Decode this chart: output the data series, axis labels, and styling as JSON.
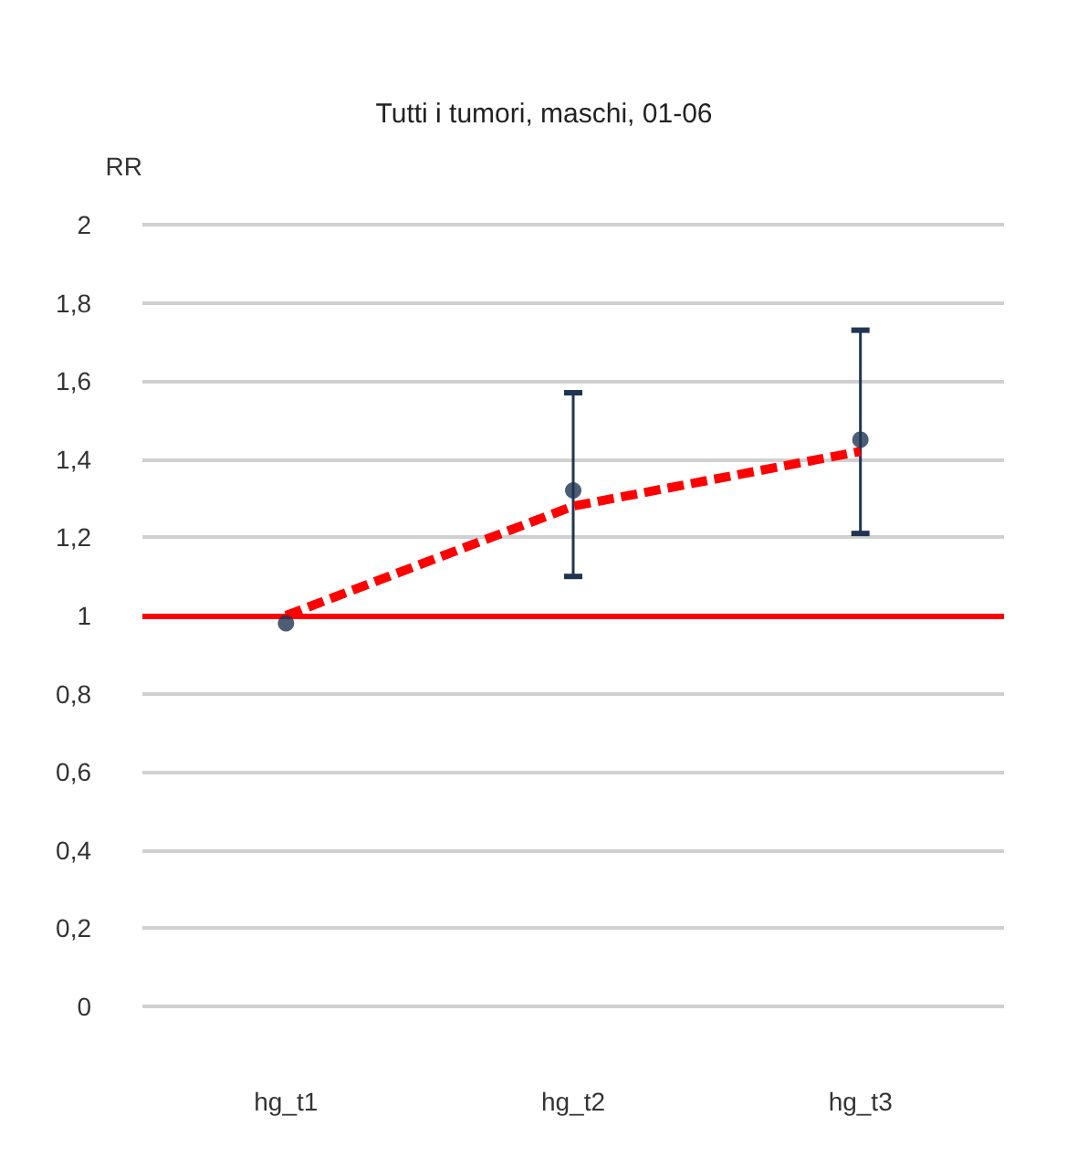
{
  "chart_data": {
    "type": "scatter",
    "title": "Tutti i tumori, maschi, 01-06",
    "ylabel": "RR",
    "categories": [
      "hg_t1",
      "hg_t2",
      "hg_t3"
    ],
    "series": [
      {
        "color": "#1f3552",
        "marker": "circle",
        "values": [
          0.98,
          1.32,
          1.45
        ],
        "errors": [
          null,
          [
            1.1,
            1.57
          ],
          [
            1.21,
            1.73
          ]
        ]
      },
      {
        "type": "line",
        "color": "#ff0000",
        "line_style": "dashed",
        "marker": "none",
        "values": [
          1.0,
          1.28,
          1.42
        ]
      }
    ],
    "ylim": [
      0,
      2
    ],
    "yticks": [
      0,
      {
        "value": 0.2,
        "label": "0,2"
      },
      {
        "value": 0.4,
        "label": "0,4"
      },
      {
        "value": 0.6,
        "label": "0,6"
      },
      {
        "value": 0.8,
        "label": "0,8"
      },
      1,
      {
        "value": 1.2,
        "label": "1,2"
      },
      {
        "value": 1.4,
        "label": "1,4"
      },
      {
        "value": 1.6,
        "label": "1,6"
      },
      {
        "value": 1.8,
        "label": "1,8"
      },
      2
    ],
    "ref_lines": [
      {
        "axis": "y",
        "value": 1,
        "color": "#ff0000",
        "line_style": "solid"
      }
    ],
    "grid": "y"
  }
}
